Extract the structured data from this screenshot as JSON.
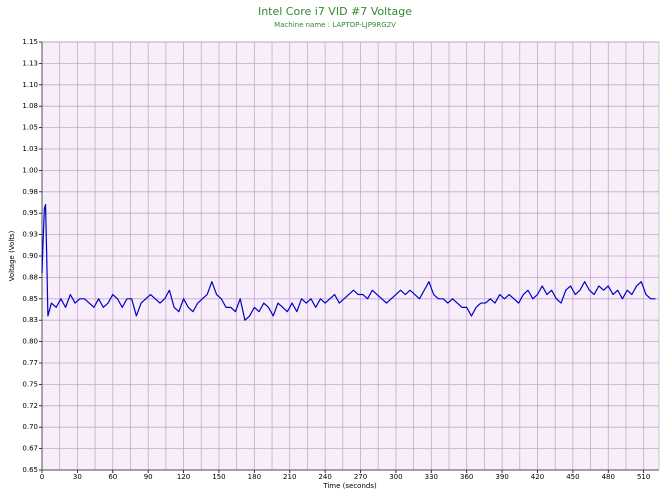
{
  "chart_data": {
    "type": "line",
    "title": "Intel Core i7 VID #7 Voltage",
    "subtitle": "Machine name : LAPTOP-LJP9RG2V",
    "x_label": "Time (seconds)",
    "y_label": "Voltage (Volts)",
    "grid": true,
    "xlim": [
      0,
      523
    ],
    "xticks": [
      0,
      30,
      60,
      90,
      120,
      150,
      180,
      210,
      240,
      270,
      300,
      330,
      360,
      390,
      420,
      450,
      480,
      510
    ],
    "ylim": [
      0.65,
      1.15
    ],
    "yticks": [
      {
        "value": 0.65,
        "label": "0.65"
      },
      {
        "value": 0.675,
        "label": "0.67"
      },
      {
        "value": 0.7,
        "label": "0.70"
      },
      {
        "value": 0.725,
        "label": "0.72"
      },
      {
        "value": 0.75,
        "label": "0.75"
      },
      {
        "value": 0.775,
        "label": "0.77"
      },
      {
        "value": 0.8,
        "label": "0.80"
      },
      {
        "value": 0.825,
        "label": "0.83"
      },
      {
        "value": 0.85,
        "label": "0.85"
      },
      {
        "value": 0.875,
        "label": "0.88"
      },
      {
        "value": 0.9,
        "label": "0.90"
      },
      {
        "value": 0.925,
        "label": "0.93"
      },
      {
        "value": 0.95,
        "label": "0.95"
      },
      {
        "value": 0.975,
        "label": "0.98"
      },
      {
        "value": 1.0,
        "label": "1.00"
      },
      {
        "value": 1.025,
        "label": "1.03"
      },
      {
        "value": 1.05,
        "label": "1.05"
      },
      {
        "value": 1.075,
        "label": "1.08"
      },
      {
        "value": 1.1,
        "label": "1.10"
      },
      {
        "value": 1.125,
        "label": "1.13"
      },
      {
        "value": 1.15,
        "label": "1.15"
      }
    ],
    "x": [
      0,
      1,
      2,
      3,
      4,
      5,
      8,
      12,
      16,
      20,
      24,
      28,
      32,
      36,
      40,
      44,
      48,
      52,
      56,
      60,
      64,
      68,
      72,
      76,
      80,
      84,
      88,
      92,
      96,
      100,
      104,
      108,
      112,
      116,
      120,
      124,
      128,
      132,
      136,
      140,
      144,
      148,
      152,
      156,
      160,
      164,
      168,
      172,
      176,
      180,
      184,
      188,
      192,
      196,
      200,
      204,
      208,
      212,
      216,
      220,
      224,
      228,
      232,
      236,
      240,
      244,
      248,
      252,
      256,
      260,
      264,
      268,
      272,
      276,
      280,
      284,
      288,
      292,
      296,
      300,
      304,
      308,
      312,
      316,
      320,
      324,
      328,
      332,
      336,
      340,
      344,
      348,
      352,
      356,
      360,
      364,
      368,
      372,
      376,
      380,
      384,
      388,
      392,
      396,
      400,
      404,
      408,
      412,
      416,
      420,
      424,
      428,
      432,
      436,
      440,
      444,
      448,
      452,
      456,
      460,
      464,
      468,
      472,
      476,
      480,
      484,
      488,
      492,
      496,
      500,
      504,
      508,
      512,
      516,
      520
    ],
    "series": [
      {
        "color": "#0000c8",
        "values": [
          0.88,
          0.92,
          0.955,
          0.96,
          0.9,
          0.83,
          0.845,
          0.84,
          0.85,
          0.84,
          0.855,
          0.845,
          0.85,
          0.85,
          0.845,
          0.84,
          0.85,
          0.84,
          0.845,
          0.855,
          0.85,
          0.84,
          0.85,
          0.85,
          0.83,
          0.845,
          0.85,
          0.855,
          0.85,
          0.845,
          0.85,
          0.86,
          0.84,
          0.835,
          0.85,
          0.84,
          0.835,
          0.845,
          0.85,
          0.855,
          0.87,
          0.855,
          0.85,
          0.84,
          0.84,
          0.835,
          0.85,
          0.825,
          0.83,
          0.84,
          0.835,
          0.845,
          0.84,
          0.83,
          0.845,
          0.84,
          0.835,
          0.845,
          0.835,
          0.85,
          0.845,
          0.85,
          0.84,
          0.85,
          0.845,
          0.85,
          0.855,
          0.845,
          0.85,
          0.855,
          0.86,
          0.855,
          0.855,
          0.85,
          0.86,
          0.855,
          0.85,
          0.845,
          0.85,
          0.855,
          0.86,
          0.855,
          0.86,
          0.855,
          0.85,
          0.86,
          0.87,
          0.855,
          0.85,
          0.85,
          0.845,
          0.85,
          0.845,
          0.84,
          0.84,
          0.83,
          0.84,
          0.845,
          0.845,
          0.85,
          0.845,
          0.855,
          0.85,
          0.855,
          0.85,
          0.845,
          0.855,
          0.86,
          0.85,
          0.855,
          0.865,
          0.855,
          0.86,
          0.85,
          0.845,
          0.86,
          0.865,
          0.855,
          0.86,
          0.87,
          0.86,
          0.855,
          0.865,
          0.86,
          0.865,
          0.855,
          0.86,
          0.85,
          0.86,
          0.855,
          0.865,
          0.87,
          0.855,
          0.85,
          0.85
        ]
      }
    ]
  }
}
